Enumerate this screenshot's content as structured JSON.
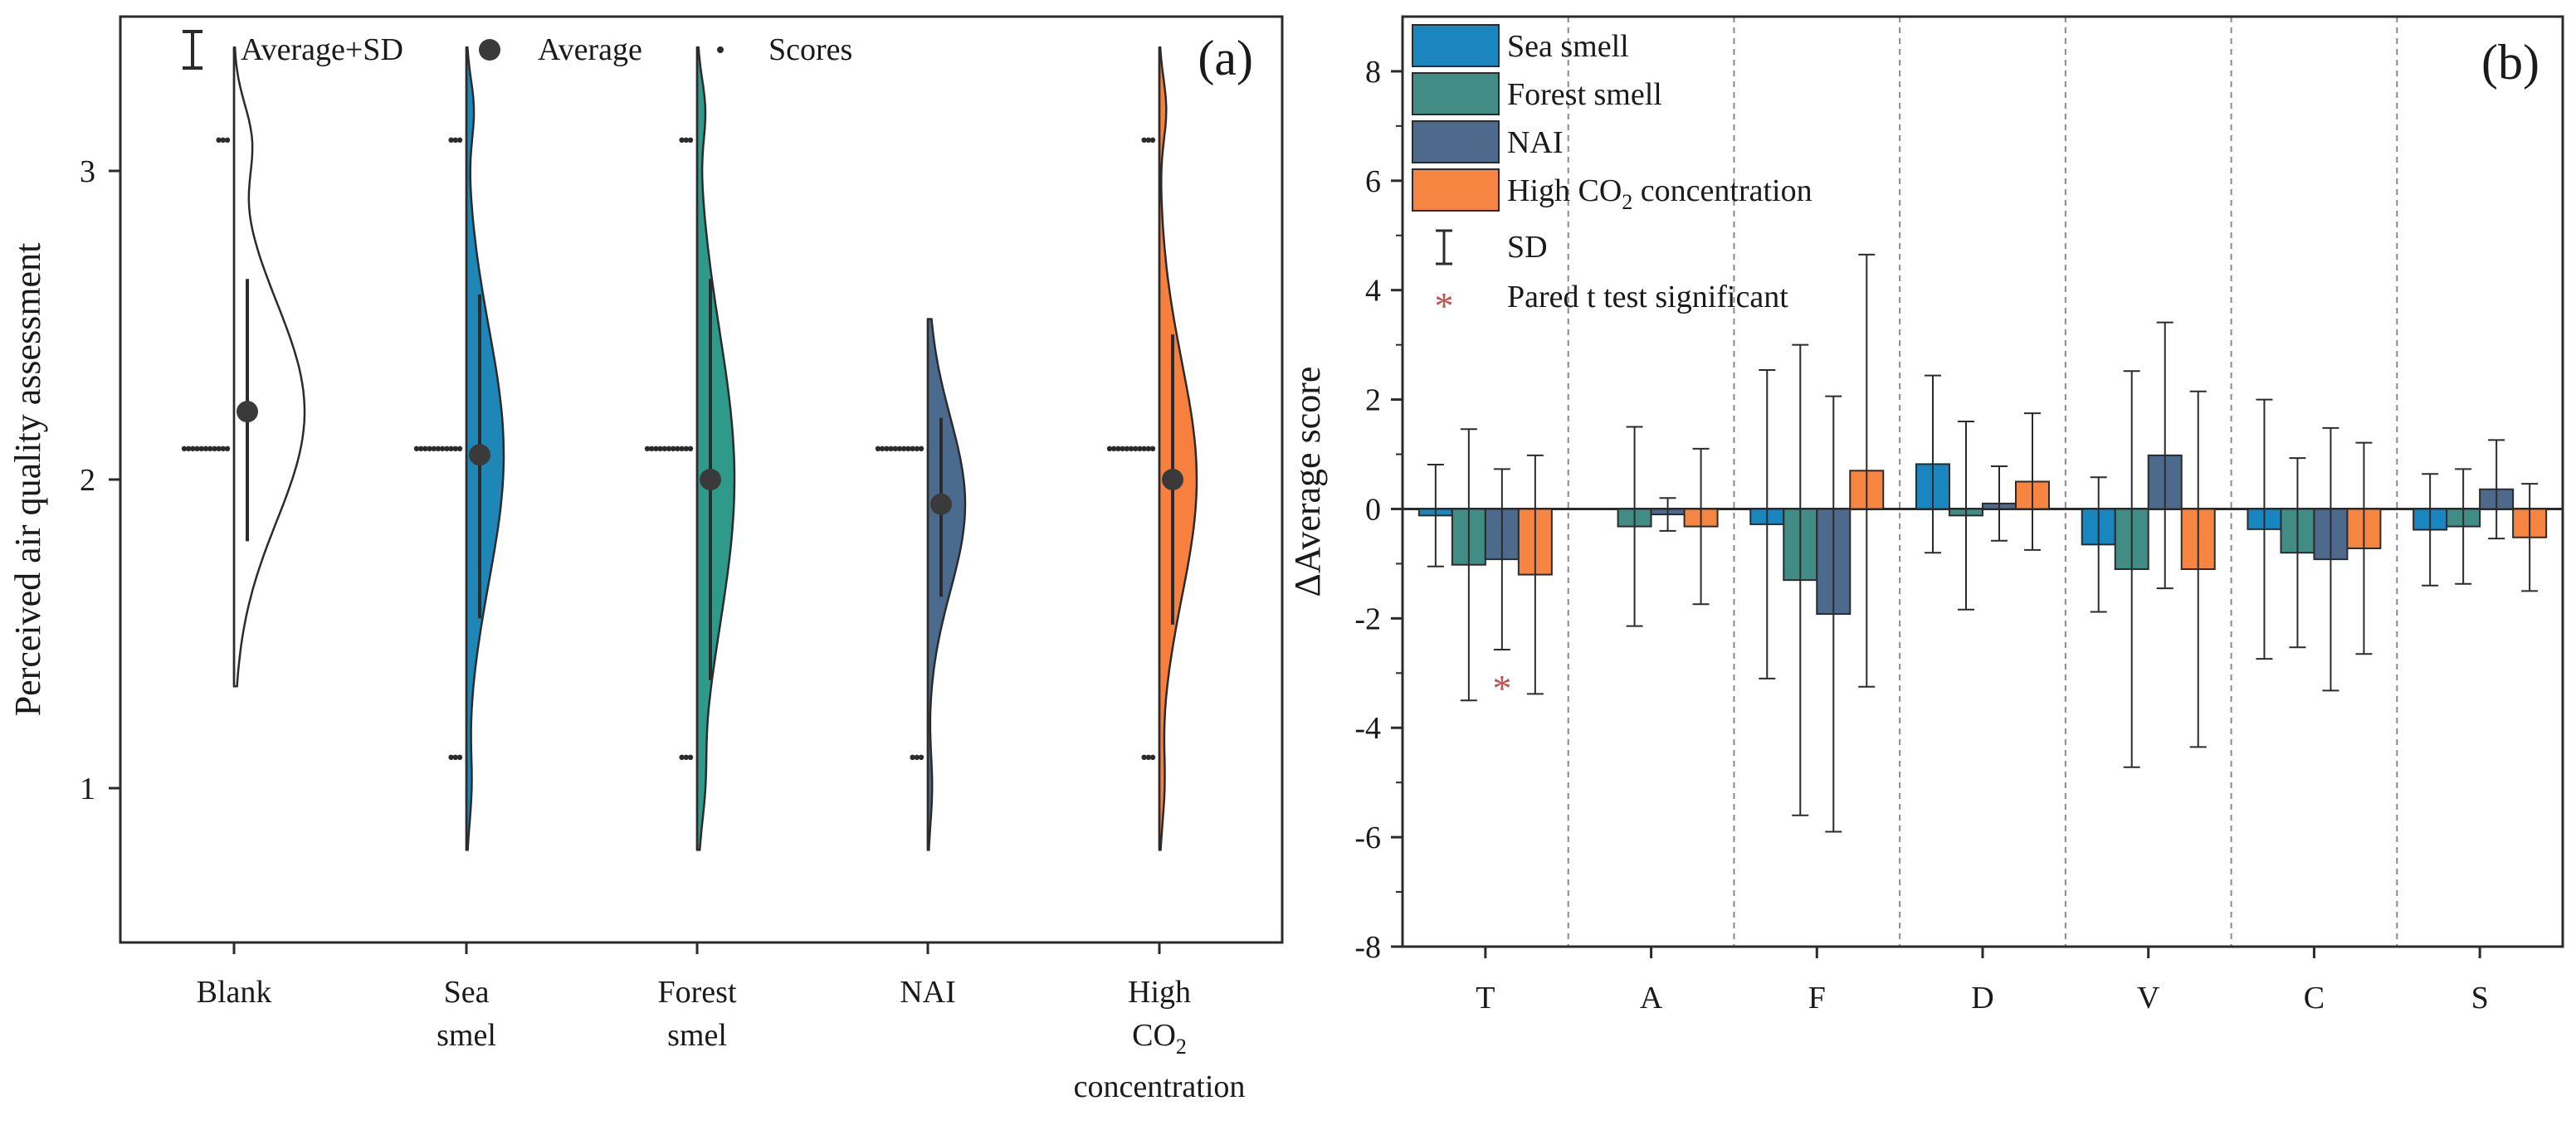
{
  "figure": {
    "panel_a_label": "(a)",
    "panel_b_label": "(b)"
  },
  "colors": {
    "blank": "#ffffff",
    "sea": "#1f86b8",
    "forest": "#2f9a8a",
    "nai": "#4b6b8e",
    "co2": "#f7803f",
    "sig": "#c0504d",
    "ink": "#2b2b2b",
    "sea_b": "#1a86bf",
    "forest_b": "#418d86",
    "nai_b": "#4d6a8c",
    "co2_b": "#f58540"
  },
  "chart_data": [
    {
      "type": "violin",
      "panel": "(a)",
      "title": "",
      "ylabel": "Perceived air quality assessment",
      "ylim": [
        0.5,
        3.5
      ],
      "yticks": [
        "1",
        "2",
        "3"
      ],
      "legend": {
        "placement": "top",
        "entries": [
          "Average+SD",
          "Average",
          "Scores"
        ]
      },
      "categories": [
        {
          "label": [
            "Blank"
          ],
          "average": 2.22,
          "sd_low": 1.8,
          "sd_high": 2.65,
          "kde_min": 1.33,
          "kde_max": 3.4,
          "score_levels": [
            2.1,
            3.1
          ],
          "color_key": "blank"
        },
        {
          "label": [
            "Sea",
            "smel"
          ],
          "average": 2.08,
          "sd_low": 1.55,
          "sd_high": 2.6,
          "kde_min": 0.8,
          "kde_max": 3.4,
          "score_levels": [
            1.1,
            2.1,
            3.1
          ],
          "color_key": "sea"
        },
        {
          "label": [
            "Forest",
            "smel"
          ],
          "average": 2.0,
          "sd_low": 1.35,
          "sd_high": 2.65,
          "kde_min": 0.8,
          "kde_max": 3.4,
          "score_levels": [
            1.1,
            2.1,
            3.1
          ],
          "color_key": "forest"
        },
        {
          "label": [
            "NAI"
          ],
          "average": 1.92,
          "sd_low": 1.62,
          "sd_high": 2.2,
          "kde_min": 0.8,
          "kde_max": 2.52,
          "score_levels": [
            1.1,
            2.1
          ],
          "color_key": "nai"
        },
        {
          "label": [
            "High",
            "CO2",
            "concentration"
          ],
          "average": 2.0,
          "sd_low": 1.53,
          "sd_high": 2.47,
          "kde_min": 0.8,
          "kde_max": 3.4,
          "score_levels": [
            1.1,
            2.1,
            3.1
          ],
          "color_key": "co2"
        }
      ]
    },
    {
      "type": "bar",
      "panel": "(b)",
      "title": "",
      "xlabel": "",
      "ylabel": "ΔAverage score",
      "ylim": [
        -8,
        9
      ],
      "yticks": [
        -8,
        -6,
        -4,
        -2,
        0,
        2,
        4,
        6,
        8
      ],
      "grid": "vertical dashed separators between categories",
      "legend": {
        "placement": "top-left",
        "sd_label": "SD",
        "sig_label": "Pared t test significant",
        "sig_symbol": "*"
      },
      "categories": [
        "T",
        "A",
        "F",
        "D",
        "V",
        "C",
        "S"
      ],
      "series": [
        {
          "name": "Sea smell",
          "color_key": "sea_b",
          "values": [
            -0.12,
            0.0,
            -0.28,
            0.82,
            -0.65,
            -0.37,
            -0.38
          ],
          "sd": [
            0.93,
            0.0,
            2.82,
            1.62,
            1.23,
            2.37,
            1.02
          ]
        },
        {
          "name": "Forest smell",
          "color_key": "forest_b",
          "values": [
            -1.02,
            -0.32,
            -1.3,
            -0.12,
            -1.1,
            -0.8,
            -0.32
          ],
          "sd": [
            2.48,
            1.82,
            4.3,
            1.72,
            3.62,
            1.73,
            1.05
          ]
        },
        {
          "name": "NAI",
          "color_key": "nai_b",
          "values": [
            -0.92,
            -0.1,
            -1.92,
            0.1,
            0.98,
            -0.92,
            0.36
          ],
          "sd": [
            1.65,
            0.3,
            3.98,
            0.68,
            2.43,
            2.4,
            0.9
          ]
        },
        {
          "name_parts": [
            "High CO",
            "2",
            " concentration"
          ],
          "name": "High CO2 concentration",
          "color_key": "co2_b",
          "values": [
            -1.2,
            -0.32,
            0.7,
            0.5,
            -1.1,
            -0.72,
            -0.52
          ],
          "sd": [
            2.18,
            1.42,
            3.95,
            1.25,
            3.25,
            1.93,
            0.98
          ]
        }
      ],
      "significant": [
        {
          "category": "T",
          "series": "NAI"
        }
      ]
    }
  ]
}
